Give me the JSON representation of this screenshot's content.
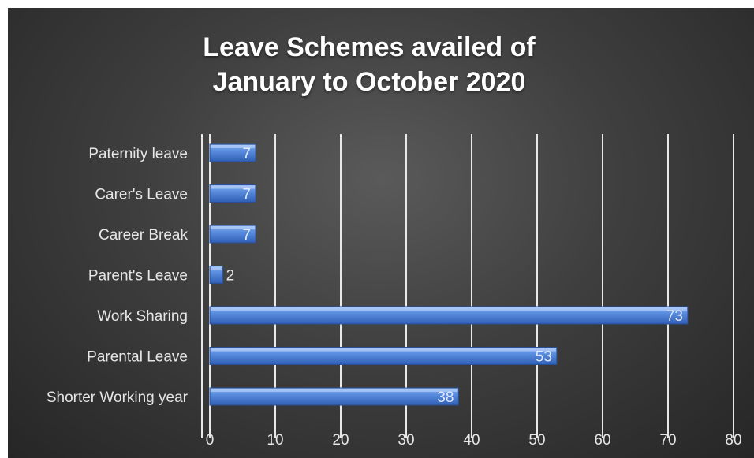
{
  "chart_data": {
    "type": "bar",
    "orientation": "horizontal",
    "title_lines": [
      "Leave Schemes availed of",
      "January to October 2020"
    ],
    "categories": [
      "Paternity leave",
      "Carer's Leave",
      "Career Break",
      "Parent's Leave",
      "Work Sharing",
      "Parental Leave",
      "Shorter Working year"
    ],
    "values": [
      7,
      7,
      7,
      2,
      73,
      53,
      38
    ],
    "xlim": [
      0,
      80
    ],
    "x_ticks": [
      0,
      10,
      20,
      30,
      40,
      50,
      60,
      70,
      80
    ],
    "grid": "vertical",
    "data_labels": true,
    "legend": "none",
    "bar_color": "#4a7fd8",
    "background_color": "#3a3a3a",
    "text_color": "#e6e6e6"
  }
}
